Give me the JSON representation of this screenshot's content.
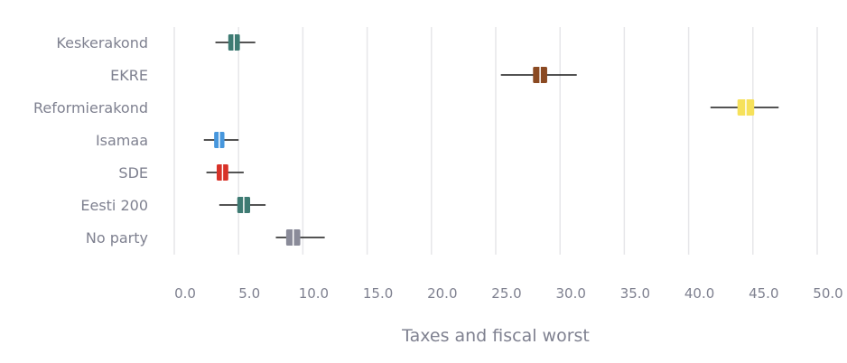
{
  "chart_data": {
    "type": "box",
    "orientation": "horizontal",
    "xlabel": "Taxes and fiscal worst",
    "xlim": [
      0,
      50
    ],
    "x_ticks": [
      "0.0",
      "5.0",
      "10.0",
      "15.0",
      "20.0",
      "25.0",
      "30.0",
      "35.0",
      "40.0",
      "45.0",
      "50.0"
    ],
    "grid": true,
    "series": [
      {
        "name": "Keskerakond",
        "low": 3.2,
        "q1": 4.2,
        "median": 4.65,
        "q3": 5.1,
        "high": 6.3,
        "color": "#3e7b73"
      },
      {
        "name": "EKRE",
        "low": 25.4,
        "q1": 27.9,
        "median": 28.45,
        "q3": 29.0,
        "high": 31.3,
        "color": "#8b4a22"
      },
      {
        "name": "Reformierakond",
        "low": 41.7,
        "q1": 43.8,
        "median": 44.45,
        "q3": 45.1,
        "high": 47.0,
        "color": "#f6e15b"
      },
      {
        "name": "Isamaa",
        "low": 2.3,
        "q1": 3.1,
        "median": 3.5,
        "q3": 3.9,
        "high": 5.0,
        "color": "#4797dd"
      },
      {
        "name": "SDE",
        "low": 2.5,
        "q1": 3.3,
        "median": 3.75,
        "q3": 4.2,
        "high": 5.4,
        "color": "#d83228"
      },
      {
        "name": "Eesti 200",
        "low": 3.5,
        "q1": 4.9,
        "median": 5.4,
        "q3": 5.9,
        "high": 7.1,
        "color": "#3e7b73"
      },
      {
        "name": "No party",
        "low": 7.9,
        "q1": 8.7,
        "median": 9.25,
        "q3": 9.8,
        "high": 11.7,
        "color": "#8a8b99"
      }
    ]
  }
}
